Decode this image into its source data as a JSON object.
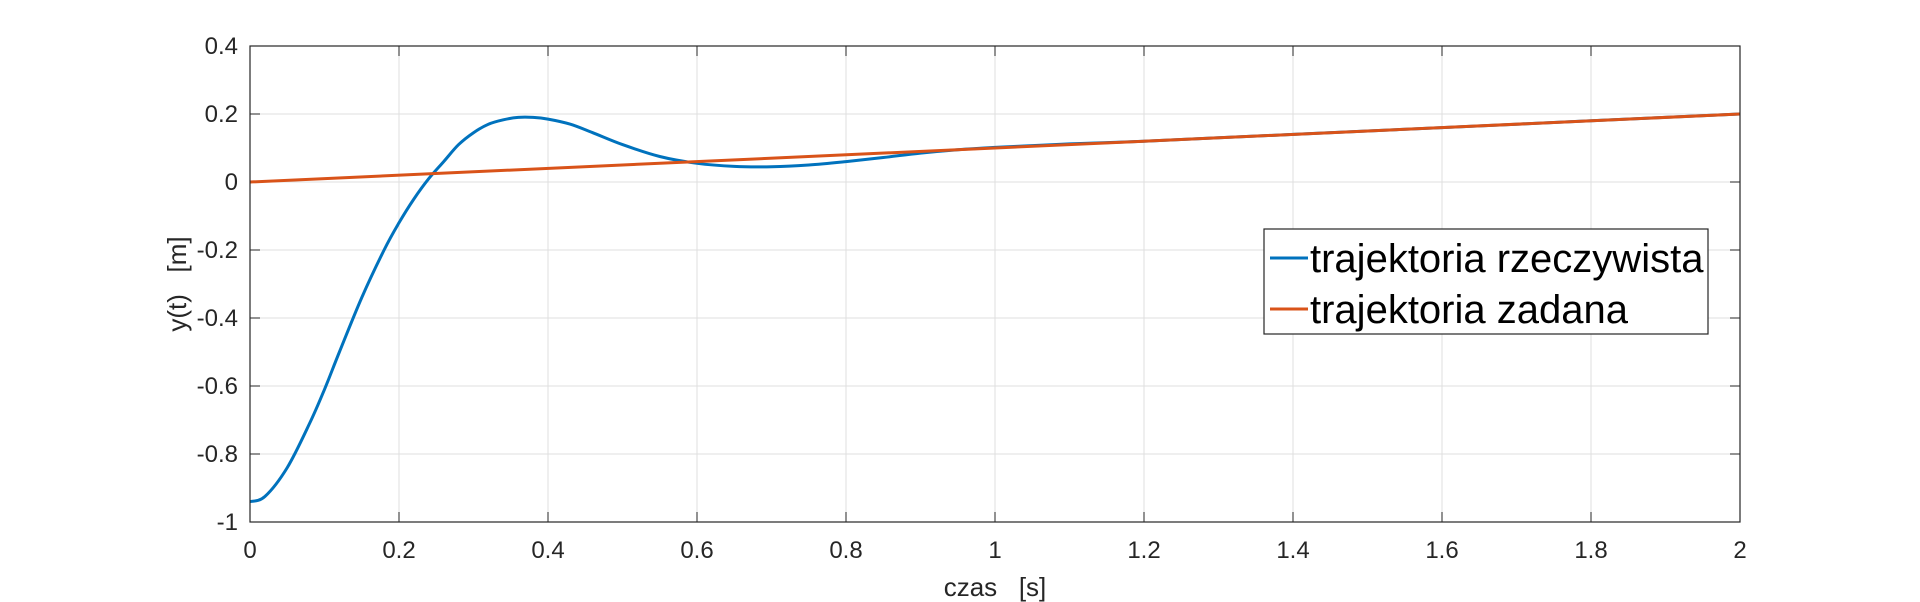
{
  "chart_data": {
    "type": "line",
    "xlabel": "czas   [s]",
    "ylabel": "y(t)   [m]",
    "xlim": [
      0,
      2
    ],
    "ylim": [
      -1,
      0.4
    ],
    "xticks": [
      0,
      0.2,
      0.4,
      0.6,
      0.8,
      1,
      1.2,
      1.4,
      1.6,
      1.8,
      2
    ],
    "xtick_labels": [
      "0",
      "0.2",
      "0.4",
      "0.6",
      "0.8",
      "1",
      "1.2",
      "1.4",
      "1.6",
      "1.8",
      "2"
    ],
    "yticks": [
      -1,
      -0.8,
      -0.6,
      -0.4,
      -0.2,
      0,
      0.2,
      0.4
    ],
    "ytick_labels": [
      "-1",
      "-0.8",
      "-0.6",
      "-0.4",
      "-0.2",
      "0",
      "0.2",
      "0.4"
    ],
    "grid": true,
    "legend_position": "right",
    "series": [
      {
        "name": "trajektoria rzeczywista",
        "color": "#0072BD",
        "x": [
          0,
          0.02,
          0.05,
          0.08,
          0.1,
          0.12,
          0.15,
          0.18,
          0.2,
          0.22,
          0.24,
          0.26,
          0.28,
          0.3,
          0.32,
          0.34,
          0.36,
          0.38,
          0.4,
          0.43,
          0.46,
          0.5,
          0.55,
          0.6,
          0.65,
          0.7,
          0.75,
          0.8,
          0.85,
          0.9,
          0.95,
          1.0,
          1.05,
          1.1,
          1.2,
          1.3,
          1.4,
          1.6,
          1.8,
          2.0
        ],
        "y": [
          -0.94,
          -0.925,
          -0.84,
          -0.71,
          -0.61,
          -0.5,
          -0.34,
          -0.2,
          -0.12,
          -0.05,
          0.01,
          0.06,
          0.11,
          0.145,
          0.17,
          0.183,
          0.19,
          0.19,
          0.185,
          0.17,
          0.145,
          0.11,
          0.075,
          0.055,
          0.046,
          0.045,
          0.05,
          0.06,
          0.072,
          0.085,
          0.095,
          0.102,
          0.107,
          0.112,
          0.12,
          0.13,
          0.14,
          0.16,
          0.18,
          0.2
        ]
      },
      {
        "name": "trajektoria zadana",
        "color": "#D95319",
        "x": [
          0,
          2
        ],
        "y": [
          0,
          0.2
        ]
      }
    ]
  }
}
